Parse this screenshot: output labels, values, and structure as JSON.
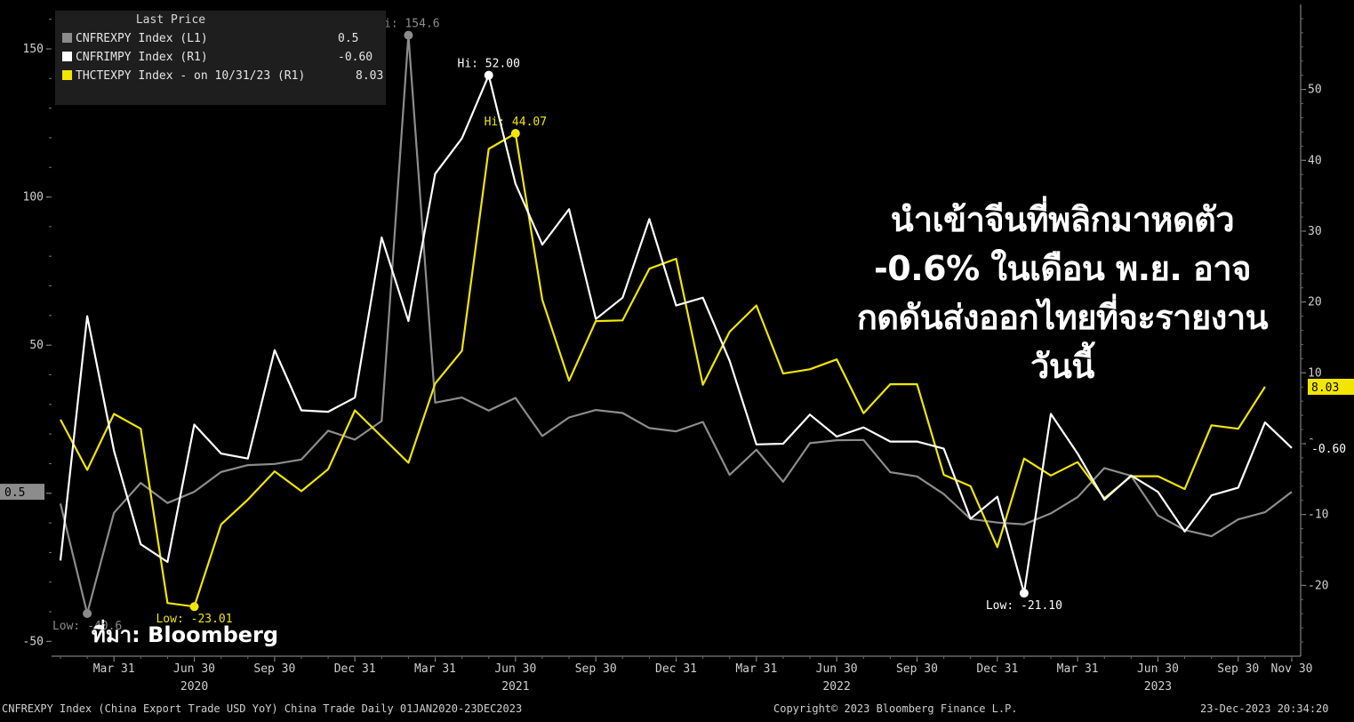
{
  "headline": "นำเข้าจีนที่พลิกมาหดตัว -0.6% ในเดือน พ.ย. อาจกดดันส่งออกไทยที่จะรายงานวันนี้",
  "source_label": "ที่มา: Bloomberg",
  "legend": {
    "title": "Last Price",
    "rows": [
      {
        "label": "CNFREXPY Index  (L1)",
        "value": "0.5",
        "color": "#8c8c8c"
      },
      {
        "label": "CNFRIMPY Index  (R1)",
        "value": "-0.60",
        "color": "#ffffff"
      },
      {
        "label": "THCTEXPY Index -  on 10/31/23  (R1)",
        "value": "8.03",
        "color": "#f2e600"
      }
    ]
  },
  "footer": {
    "left": "CNFREXPY Index (China Export Trade USD YoY) China Trade  Daily 01JAN2020-23DEC2023",
    "center": "Copyright© 2023 Bloomberg Finance L.P.",
    "right": "23-Dec-2023 20:34:20"
  },
  "chart_data": {
    "type": "line",
    "x": [
      "2020-01",
      "2020-02",
      "2020-03",
      "2020-04",
      "2020-05",
      "2020-06",
      "2020-07",
      "2020-08",
      "2020-09",
      "2020-10",
      "2020-11",
      "2020-12",
      "2021-01",
      "2021-02",
      "2021-03",
      "2021-04",
      "2021-05",
      "2021-06",
      "2021-07",
      "2021-08",
      "2021-09",
      "2021-10",
      "2021-11",
      "2021-12",
      "2022-01",
      "2022-02",
      "2022-03",
      "2022-04",
      "2022-05",
      "2022-06",
      "2022-07",
      "2022-08",
      "2022-09",
      "2022-10",
      "2022-11",
      "2022-12",
      "2023-01",
      "2023-02",
      "2023-03",
      "2023-04",
      "2023-05",
      "2023-06",
      "2023-07",
      "2023-08",
      "2023-09",
      "2023-10",
      "2023-11"
    ],
    "x_ticks": [
      {
        "label": "Mar 31",
        "x": "2020-03"
      },
      {
        "label": "Jun 30",
        "x": "2020-06"
      },
      {
        "label": "Sep 30",
        "x": "2020-09"
      },
      {
        "label": "Dec 31",
        "x": "2020-12"
      },
      {
        "label": "Mar 31",
        "x": "2021-03"
      },
      {
        "label": "Jun 30",
        "x": "2021-06"
      },
      {
        "label": "Sep 30",
        "x": "2021-09"
      },
      {
        "label": "Dec 31",
        "x": "2021-12"
      },
      {
        "label": "Mar 31",
        "x": "2022-03"
      },
      {
        "label": "Jun 30",
        "x": "2022-06"
      },
      {
        "label": "Sep 30",
        "x": "2022-09"
      },
      {
        "label": "Dec 31",
        "x": "2022-12"
      },
      {
        "label": "Mar 31",
        "x": "2023-03"
      },
      {
        "label": "Jun 30",
        "x": "2023-06"
      },
      {
        "label": "Sep 30",
        "x": "2023-09"
      },
      {
        "label": "Nov 30",
        "x": "2023-11"
      }
    ],
    "year_labels": [
      {
        "label": "2020",
        "x": "2020-06"
      },
      {
        "label": "2021",
        "x": "2021-06"
      },
      {
        "label": "2022",
        "x": "2022-06"
      },
      {
        "label": "2023",
        "x": "2023-06"
      }
    ],
    "left_axis": {
      "ylim": [
        -55,
        165
      ],
      "ticks": [
        -50,
        0,
        50,
        100,
        150
      ],
      "tick_labels": [
        "-50",
        "",
        "50",
        "100",
        "150"
      ]
    },
    "right_axis": {
      "ylim": [
        -30,
        62
      ],
      "ticks": [
        -20,
        -10,
        0,
        10,
        20,
        30,
        40,
        50
      ]
    },
    "series": [
      {
        "name": "CNFREXPY Index",
        "axis": "left",
        "color": "#8c8c8c",
        "values": [
          -3.5,
          -40.6,
          -6.6,
          3.5,
          -3.3,
          0.5,
          7.2,
          9.5,
          9.9,
          11.4,
          21.1,
          18.1,
          24.4,
          154.6,
          30.6,
          32.3,
          27.9,
          32.2,
          19.3,
          25.6,
          28.1,
          27.1,
          22.0,
          20.9,
          24.1,
          6.2,
          14.7,
          3.9,
          16.9,
          17.9,
          18.0,
          7.1,
          5.7,
          -0.3,
          -8.7,
          -9.9,
          -10.5,
          -6.8,
          -1.3,
          8.5,
          5.9,
          -7.5,
          -12.4,
          -14.5,
          -8.8,
          -6.4,
          0.5
        ]
      },
      {
        "name": "CNFRIMPY Index",
        "axis": "right",
        "color": "#ffffff",
        "values": [
          -16.5,
          18.0,
          -1.0,
          -14.2,
          -16.7,
          2.7,
          -1.4,
          -2.1,
          13.2,
          4.7,
          4.5,
          6.5,
          29.1,
          17.3,
          38.1,
          43.1,
          52.0,
          36.7,
          28.1,
          33.1,
          17.6,
          20.6,
          31.7,
          19.5,
          20.6,
          11.7,
          -0.1,
          0.0,
          4.1,
          1.0,
          2.3,
          0.3,
          0.3,
          -0.7,
          -10.6,
          -7.5,
          -21.1,
          4.2,
          -1.4,
          -7.9,
          -4.5,
          -6.8,
          -12.4,
          -7.3,
          -6.2,
          3.0,
          -0.6
        ]
      },
      {
        "name": "THCTEXPY Index",
        "axis": "right",
        "color": "#f2e600",
        "values": [
          3.4,
          -3.7,
          4.2,
          2.1,
          -22.5,
          -23.0,
          -11.4,
          -7.9,
          -3.9,
          -6.7,
          -3.6,
          4.7,
          1.0,
          -2.7,
          8.5,
          13.1,
          41.6,
          43.8,
          20.3,
          8.9,
          17.3,
          17.4,
          24.7,
          26.1,
          8.3,
          15.8,
          19.5,
          9.9,
          10.5,
          11.9,
          4.3,
          8.4,
          8.4,
          -4.4,
          -6.0,
          -14.6,
          -2.1,
          -4.5,
          -2.6,
          -7.7,
          -4.6,
          -4.6,
          -6.4,
          2.6,
          2.1,
          8.03,
          null
        ]
      }
    ],
    "annotations": [
      {
        "text": "Hi: 154.6",
        "series": 0,
        "x": "2021-02"
      },
      {
        "text": "Low: -40.6",
        "series": 0,
        "x": "2020-02"
      },
      {
        "text": "Hi: 52.00",
        "series": 1,
        "x": "2021-05"
      },
      {
        "text": "Low: -21.10",
        "series": 1,
        "x": "2023-01"
      },
      {
        "text": "Hi: 44.07",
        "series": 2,
        "x": "2021-06"
      },
      {
        "text": "Low: -23.01",
        "series": 2,
        "x": "2020-06"
      }
    ],
    "last_value_tags": [
      {
        "text": "0.5",
        "axis": "left",
        "value": 0.5,
        "color": "#8c8c8c"
      },
      {
        "text": "8.03",
        "axis": "right",
        "value": 8.03,
        "color": "#f2e600"
      },
      {
        "text": "-0.60",
        "axis": "right",
        "value": -0.6,
        "color": "#ffffff"
      }
    ]
  }
}
